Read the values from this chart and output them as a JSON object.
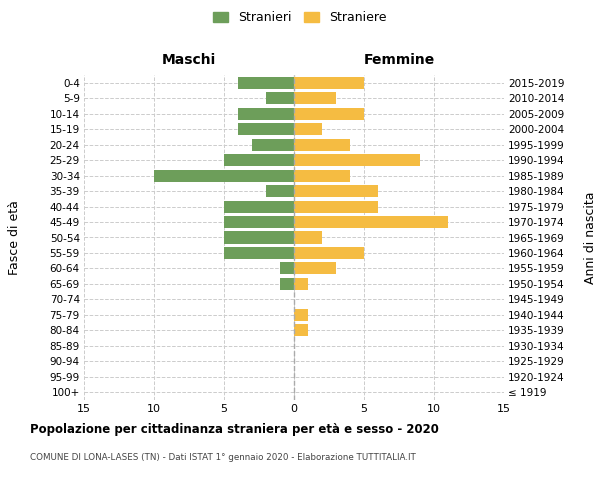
{
  "age_groups": [
    "100+",
    "95-99",
    "90-94",
    "85-89",
    "80-84",
    "75-79",
    "70-74",
    "65-69",
    "60-64",
    "55-59",
    "50-54",
    "45-49",
    "40-44",
    "35-39",
    "30-34",
    "25-29",
    "20-24",
    "15-19",
    "10-14",
    "5-9",
    "0-4"
  ],
  "birth_years": [
    "≤ 1919",
    "1920-1924",
    "1925-1929",
    "1930-1934",
    "1935-1939",
    "1940-1944",
    "1945-1949",
    "1950-1954",
    "1955-1959",
    "1960-1964",
    "1965-1969",
    "1970-1974",
    "1975-1979",
    "1980-1984",
    "1985-1989",
    "1990-1994",
    "1995-1999",
    "2000-2004",
    "2005-2009",
    "2010-2014",
    "2015-2019"
  ],
  "maschi": [
    0,
    0,
    0,
    0,
    0,
    0,
    0,
    1,
    1,
    5,
    5,
    5,
    5,
    2,
    10,
    5,
    3,
    4,
    4,
    2,
    4
  ],
  "femmine": [
    0,
    0,
    0,
    0,
    1,
    1,
    0,
    1,
    3,
    5,
    2,
    11,
    6,
    6,
    4,
    9,
    4,
    2,
    5,
    3,
    5
  ],
  "color_maschi": "#6d9e5a",
  "color_femmine": "#f5bc42",
  "title": "Popolazione per cittadinanza straniera per età e sesso - 2020",
  "subtitle": "COMUNE DI LONA-LASES (TN) - Dati ISTAT 1° gennaio 2020 - Elaborazione TUTTITALIA.IT",
  "ylabel_left": "Fasce di età",
  "ylabel_right": "Anni di nascita",
  "xlabel_maschi": "Maschi",
  "xlabel_femmine": "Femmine",
  "legend_maschi": "Stranieri",
  "legend_femmine": "Straniere",
  "xlim": 15,
  "background_color": "#ffffff",
  "grid_color": "#cccccc"
}
